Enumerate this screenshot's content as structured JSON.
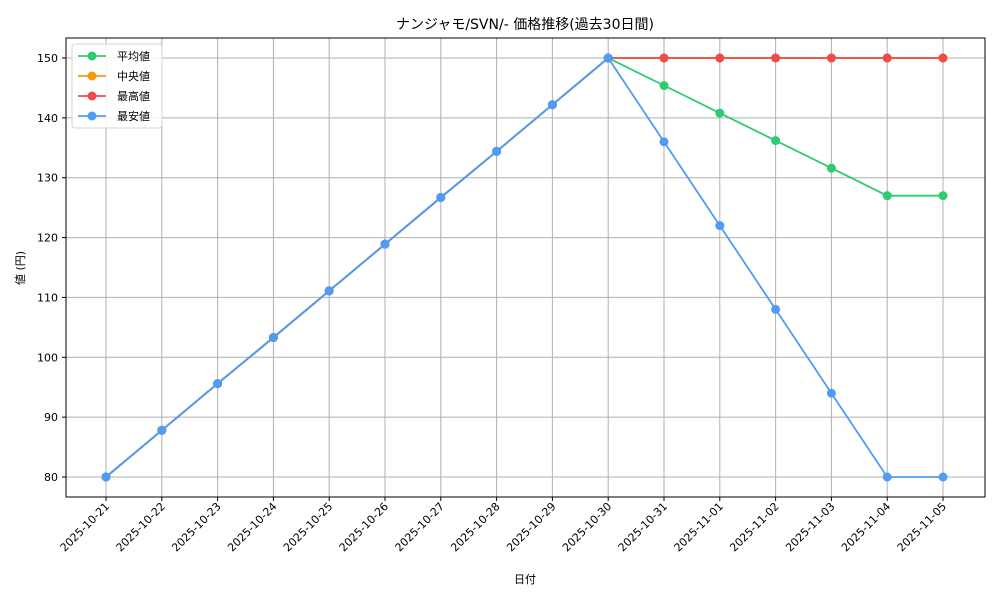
{
  "chart_data": {
    "type": "line",
    "title": "ナンジャモ/SVN/- 価格推移(過去30日間)",
    "xlabel": "日付",
    "ylabel": "値 (円)",
    "ylim": [
      76.5,
      153.5
    ],
    "yticks": [
      80,
      90,
      100,
      110,
      120,
      130,
      140,
      150
    ],
    "grid": true,
    "legend_position": "upper left",
    "categories": [
      "2025-10-21",
      "2025-10-22",
      "2025-10-23",
      "2025-10-24",
      "2025-10-25",
      "2025-10-26",
      "2025-10-27",
      "2025-10-28",
      "2025-10-29",
      "2025-10-30",
      "2025-10-31",
      "2025-11-01",
      "2025-11-02",
      "2025-11-03",
      "2025-11-04",
      "2025-11-05"
    ],
    "series": [
      {
        "name": "平均値",
        "color": "#2ecc71",
        "values": [
          80,
          87.8,
          95.6,
          103.3,
          111.1,
          118.9,
          126.7,
          134.4,
          142.2,
          150,
          145.4,
          140.8,
          136.2,
          131.6,
          127.0,
          127.0
        ]
      },
      {
        "name": "中央値",
        "color": "#f39c12",
        "values": [
          80,
          87.8,
          95.6,
          103.3,
          111.1,
          118.9,
          126.7,
          134.4,
          142.2,
          150,
          150,
          150,
          150,
          150,
          150,
          150
        ]
      },
      {
        "name": "最高値",
        "color": "#ef4b4b",
        "values": [
          80,
          87.8,
          95.6,
          103.3,
          111.1,
          118.9,
          126.7,
          134.4,
          142.2,
          150,
          150,
          150,
          150,
          150,
          150,
          150
        ]
      },
      {
        "name": "最安値",
        "color": "#4f9cf7",
        "values": [
          80,
          87.8,
          95.6,
          103.3,
          111.1,
          118.9,
          126.7,
          134.4,
          142.2,
          150,
          136,
          122,
          108,
          94,
          80,
          80
        ]
      }
    ]
  }
}
